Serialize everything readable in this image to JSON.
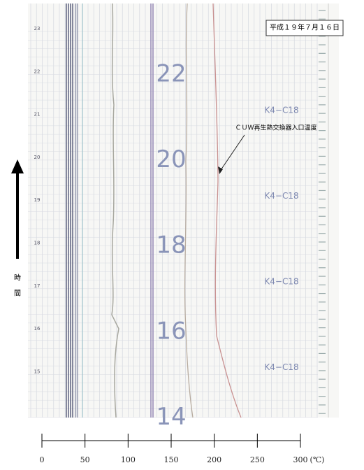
{
  "header": {
    "date": "平成１９年７月１６日"
  },
  "annotation": "ＣＵＷ再生熱交換器入口温度",
  "hour_labels": [
    "22",
    "20",
    "18",
    "16",
    "14"
  ],
  "margin_hours": [
    "23",
    "22",
    "21",
    "20",
    "19",
    "18",
    "17",
    "16",
    "15"
  ],
  "tags": [
    "K4−C18",
    "K4−C18",
    "K4−C18",
    "K4−C18"
  ],
  "y_label": [
    "時",
    "間"
  ],
  "scale": {
    "ticks": [
      0,
      50,
      100,
      150,
      200,
      250,
      300
    ],
    "unit": "(℃)"
  }
}
